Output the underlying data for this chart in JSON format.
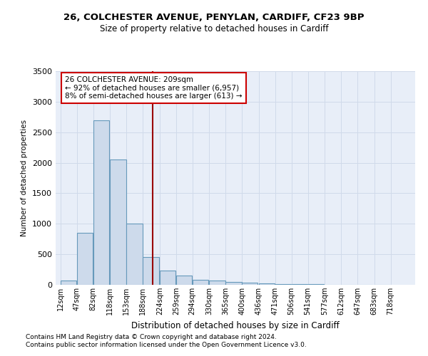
{
  "title1": "26, COLCHESTER AVENUE, PENYLAN, CARDIFF, CF23 9BP",
  "title2": "Size of property relative to detached houses in Cardiff",
  "xlabel": "Distribution of detached houses by size in Cardiff",
  "ylabel": "Number of detached properties",
  "bins": [
    12,
    47,
    82,
    118,
    153,
    188,
    224,
    259,
    294,
    330,
    365,
    400,
    436,
    471,
    506,
    541,
    577,
    612,
    647,
    683,
    718
  ],
  "bar_heights": [
    75,
    850,
    2700,
    2050,
    1000,
    450,
    230,
    150,
    80,
    65,
    50,
    35,
    25,
    15,
    10,
    8,
    5,
    3,
    2,
    1
  ],
  "bar_color": "#cddaeb",
  "bar_edge_color": "#6699bb",
  "grid_color": "#d0daea",
  "background_color": "#e8eef8",
  "property_size": 209,
  "red_line_color": "#990000",
  "annotation_text": "26 COLCHESTER AVENUE: 209sqm\n← 92% of detached houses are smaller (6,957)\n8% of semi-detached houses are larger (613) →",
  "annotation_box_color": "#cc0000",
  "footnote1": "Contains HM Land Registry data © Crown copyright and database right 2024.",
  "footnote2": "Contains public sector information licensed under the Open Government Licence v3.0.",
  "ylim": [
    0,
    3500
  ],
  "yticks": [
    0,
    500,
    1000,
    1500,
    2000,
    2500,
    3000,
    3500
  ],
  "bin_width": 35
}
